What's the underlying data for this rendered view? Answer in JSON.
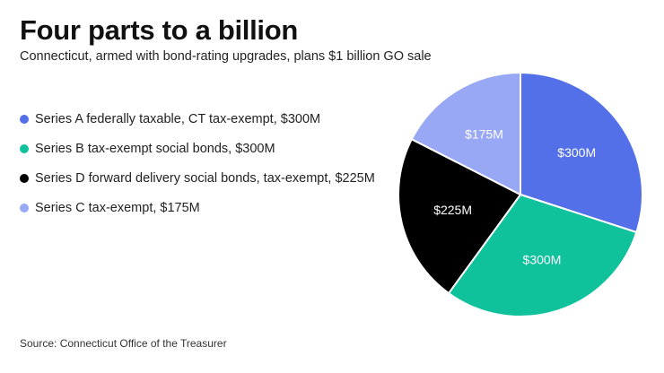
{
  "title": "Four parts to a billion",
  "subtitle": "Connecticut, armed with bond-rating upgrades, plans $1 billion GO sale",
  "source": "Source: Connecticut Office of the Treasurer",
  "chart_data": {
    "type": "pie",
    "title": "Four parts to a billion",
    "legend_position": "left",
    "unit": "$M",
    "slices": [
      {
        "legend": "Series A federally taxable, CT tax-exempt, $300M",
        "value": 300,
        "label": "$300M",
        "color": "#5470e8"
      },
      {
        "legend": "Series B tax-exempt social bonds, $300M",
        "value": 300,
        "label": "$300M",
        "color": "#10c29c"
      },
      {
        "legend": "Series D forward delivery social bonds, tax-exempt, $225M",
        "value": 225,
        "label": "$225M",
        "color": "#000000"
      },
      {
        "legend": "Series C tax-exempt, $175M",
        "value": 175,
        "label": "$175M",
        "color": "#98a8f5"
      }
    ]
  }
}
